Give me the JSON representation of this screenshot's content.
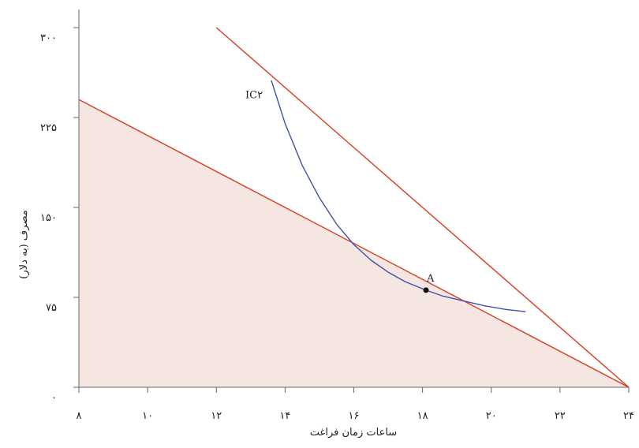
{
  "chart_data": {
    "type": "line",
    "xlabel": "ساعات زمان فراغت",
    "ylabel": "مصرف (به دلار)",
    "xlim": [
      8,
      24
    ],
    "ylim": [
      0,
      300
    ],
    "x_ticks": [
      8,
      10,
      12,
      14,
      16,
      18,
      20,
      22,
      24
    ],
    "x_tick_labels": [
      "۸",
      "۱۰",
      "۱۲",
      "۱۴",
      "۱۶",
      "۱۸",
      "۲۰",
      "۲۲",
      "۲۴"
    ],
    "y_ticks": [
      0,
      75,
      150,
      225,
      300
    ],
    "y_tick_labels": [
      "۰",
      "۷۵",
      "۱۵۰",
      "۲۲۵",
      "۳۰۰"
    ],
    "grid": false,
    "series": [
      {
        "kind": "budget-line-shaded",
        "color": "#d93a1f",
        "fill": "#f6e6e2",
        "points": [
          [
            8,
            240
          ],
          [
            24,
            0
          ]
        ]
      },
      {
        "kind": "budget-line",
        "color": "#d93a1f",
        "points": [
          [
            12,
            300
          ],
          [
            24,
            0
          ]
        ]
      },
      {
        "name": "IC۲",
        "kind": "indifference-curve",
        "color": "#4050a8",
        "points": [
          [
            13.6,
            256
          ],
          [
            14.0,
            220
          ],
          [
            14.5,
            185
          ],
          [
            15.0,
            158
          ],
          [
            15.5,
            136
          ],
          [
            16.0,
            119
          ],
          [
            16.5,
            106
          ],
          [
            17.0,
            96
          ],
          [
            17.5,
            88
          ],
          [
            18.1,
            81
          ],
          [
            18.6,
            76
          ],
          [
            19.2,
            72
          ],
          [
            19.8,
            68
          ],
          [
            20.4,
            65
          ],
          [
            21.0,
            63
          ]
        ]
      }
    ],
    "annotations": [
      {
        "text": "A",
        "x": 18.1,
        "y": 88,
        "marker": true
      },
      {
        "text": "IC۲",
        "x": 12.8,
        "y": 243
      }
    ]
  }
}
